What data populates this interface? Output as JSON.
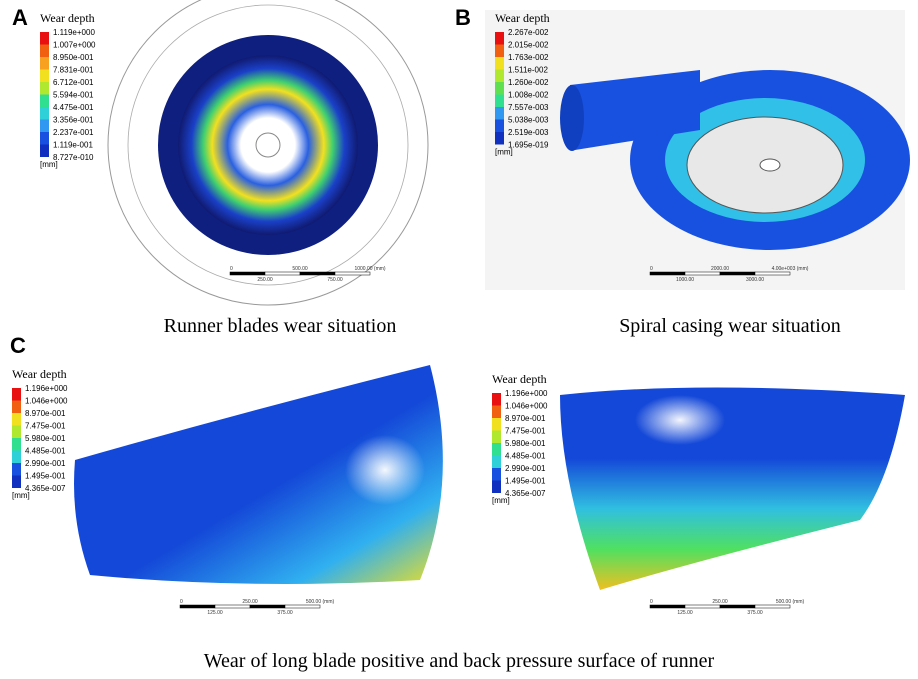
{
  "panels": [
    {
      "label": "A",
      "caption": "Runner blades wear situation",
      "legends": [
        {
          "title": "Wear depth",
          "values": [
            "1.119e+000",
            "1.007e+000",
            "8.950e-001",
            "7.831e-001",
            "6.712e-001",
            "5.594e-001",
            "4.475e-001",
            "3.356e-001",
            "2.237e-001",
            "1.119e-001",
            "8.727e-010"
          ],
          "unit": "[mm]"
        }
      ],
      "scale_bars": [
        {
          "top": [
            "0",
            "500.00",
            "1000.00 (mm)"
          ],
          "bottom": [
            "250.00",
            "750.00"
          ]
        }
      ]
    },
    {
      "label": "B",
      "caption": "Spiral casing wear situation",
      "legends": [
        {
          "title": "Wear depth",
          "values": [
            "2.267e-002",
            "2.015e-002",
            "1.763e-002",
            "1.511e-002",
            "1.260e-002",
            "1.008e-002",
            "7.557e-003",
            "5.038e-003",
            "2.519e-003",
            "1.695e-019"
          ],
          "unit": "[mm]"
        }
      ],
      "scale_bars": [
        {
          "top": [
            "0",
            "2000.00",
            "4.00e+003 (mm)"
          ],
          "bottom": [
            "1000.00",
            "3000.00"
          ]
        }
      ]
    },
    {
      "label": "C",
      "caption": "Wear of long blade positive and back pressure surface of runner",
      "legends": [
        {
          "title": "Wear depth",
          "values": [
            "1.196e+000",
            "1.046e+000",
            "8.970e-001",
            "7.475e-001",
            "5.980e-001",
            "4.485e-001",
            "2.990e-001",
            "1.495e-001",
            "4.365e-007"
          ],
          "unit": "[mm]"
        },
        {
          "title": "Wear depth",
          "values": [
            "1.196e+000",
            "1.046e+000",
            "8.970e-001",
            "7.475e-001",
            "5.980e-001",
            "4.485e-001",
            "2.990e-001",
            "1.495e-001",
            "4.365e-007"
          ],
          "unit": "[mm]"
        }
      ],
      "scale_bars": [
        {
          "top": [
            "0",
            "250.00",
            "500.00 (mm)"
          ],
          "bottom": [
            "125.00",
            "375.00"
          ]
        },
        {
          "top": [
            "0",
            "250.00",
            "500.00 (mm)"
          ],
          "bottom": [
            "125.00",
            "375.00"
          ]
        }
      ]
    }
  ]
}
